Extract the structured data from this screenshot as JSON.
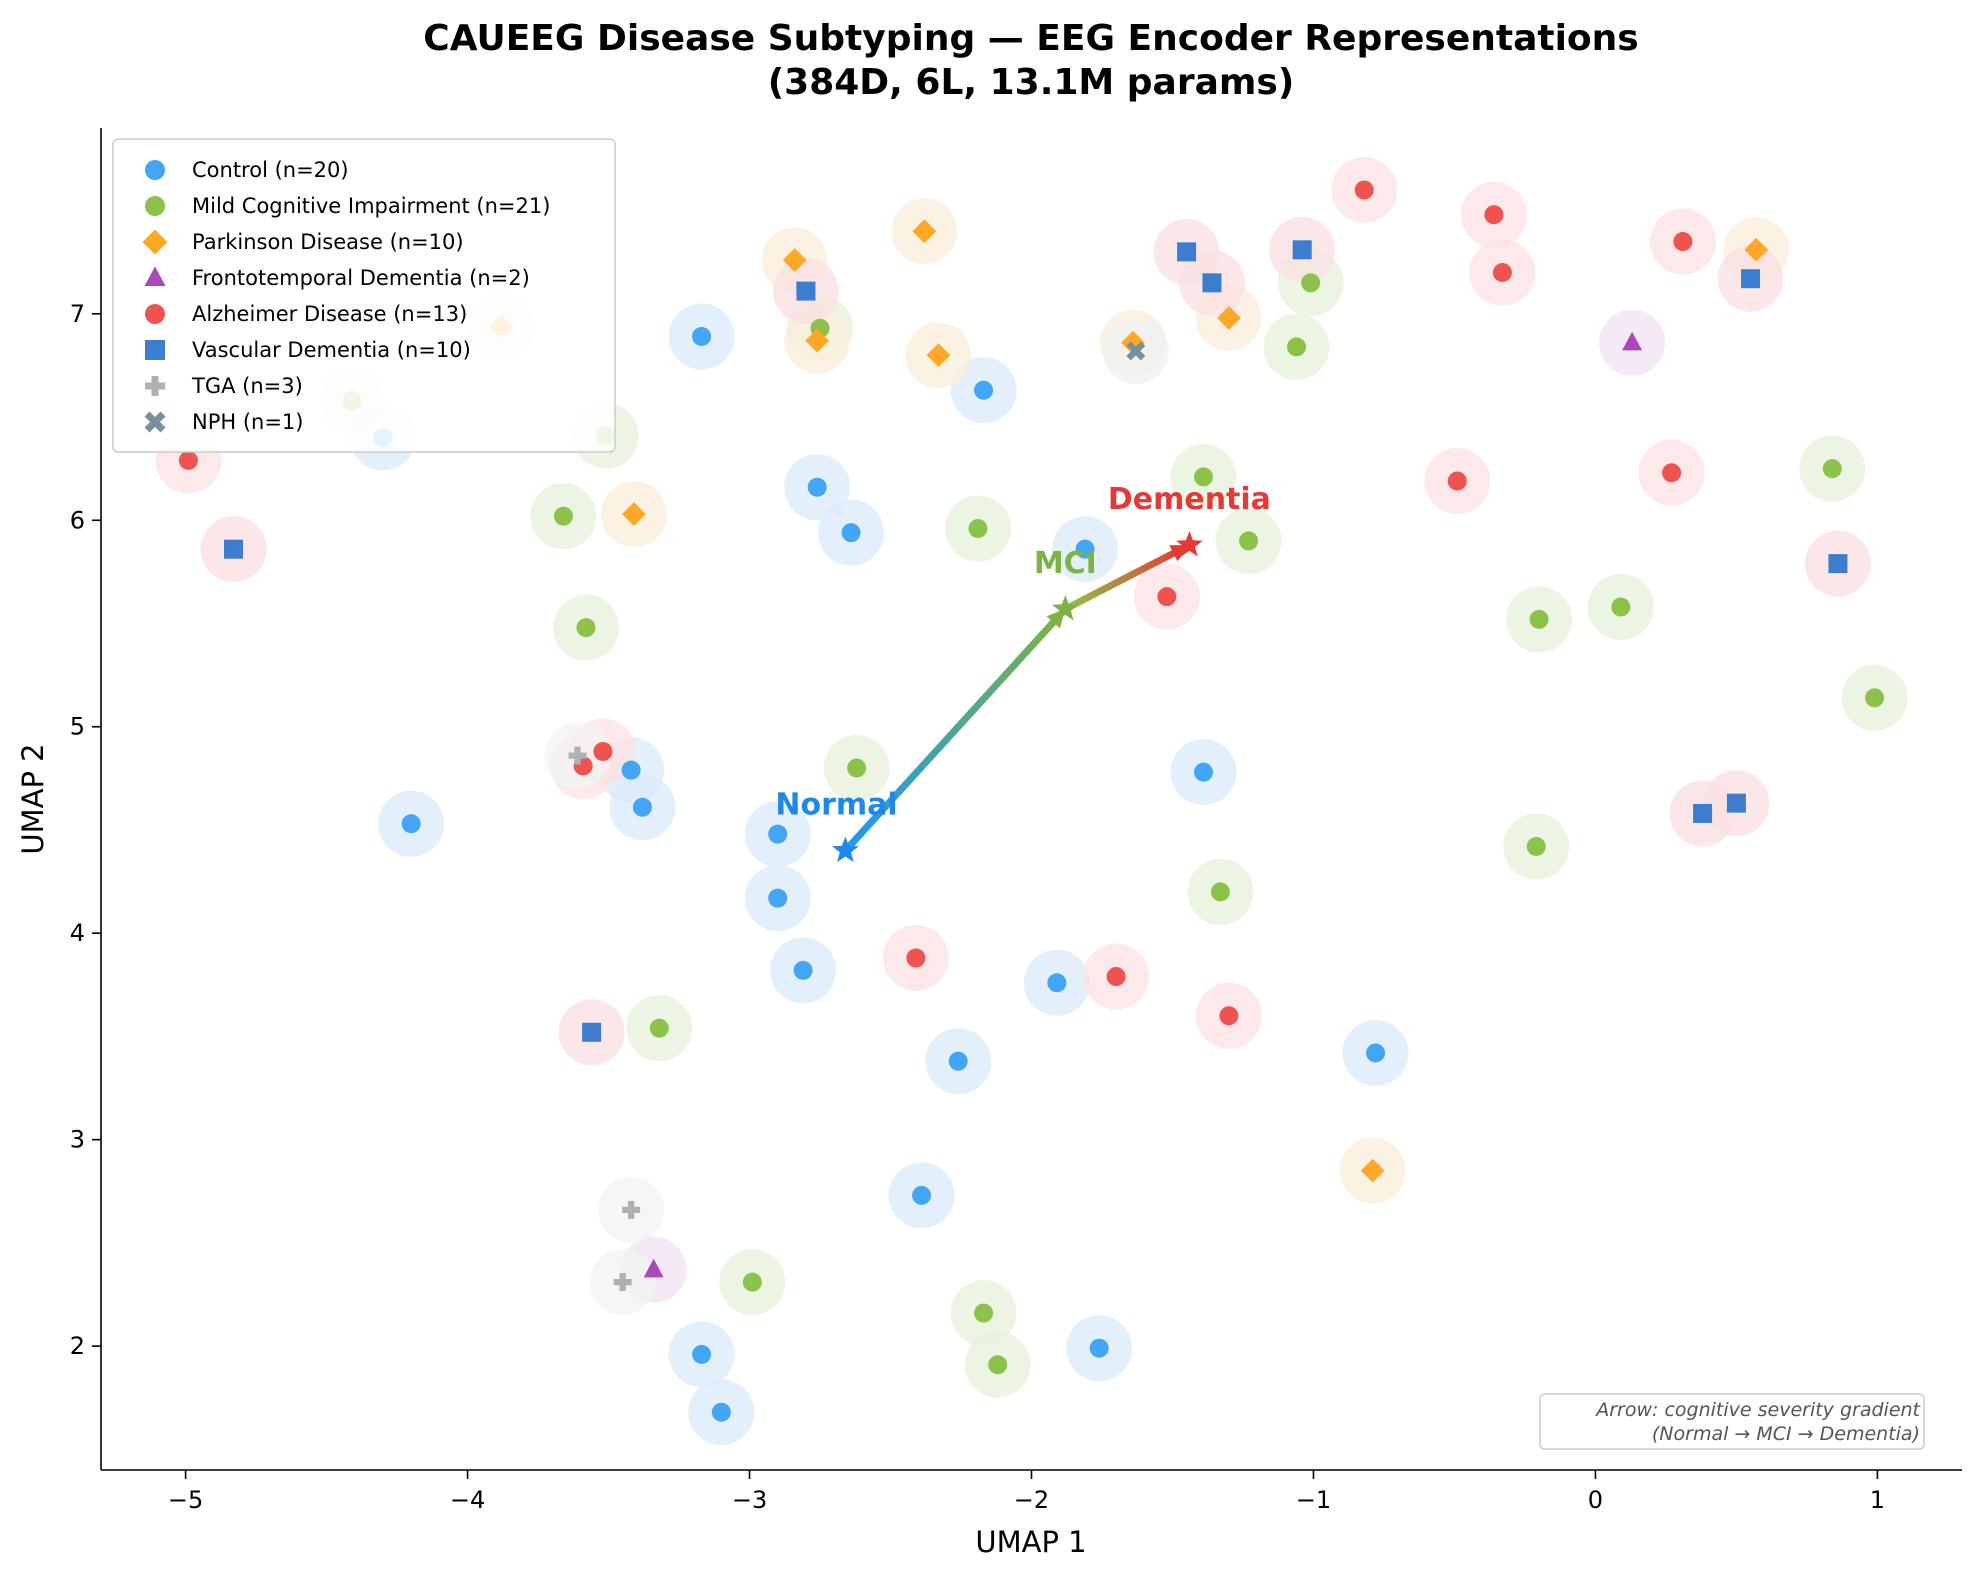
{
  "chart_data": {
    "type": "scatter",
    "title_line1": "CAUEEG Disease Subtyping — EEG Encoder Representations",
    "title_line2": "(384D, 6L, 13.1M params)",
    "xlabel": "UMAP 1",
    "ylabel": "UMAP 2",
    "xlim": [
      -5.3,
      1.3
    ],
    "ylim": [
      1.4,
      7.9
    ],
    "xticks": [
      -5,
      -4,
      -3,
      -2,
      -1,
      0,
      1
    ],
    "yticks": [
      2,
      3,
      4,
      5,
      6,
      7
    ],
    "xtick_labels": [
      "−5",
      "−4",
      "−3",
      "−2",
      "−1",
      "0",
      "1"
    ],
    "ytick_labels": [
      "2",
      "3",
      "4",
      "5",
      "6",
      "7"
    ],
    "grid": false,
    "legend_position": "top-left",
    "series": [
      {
        "name": "Control (n=20)",
        "marker": "circle",
        "color": "#42a5f5",
        "halo": "#dbeafb",
        "points": [
          [
            -4.2,
            4.53
          ],
          [
            -3.17,
            6.89
          ],
          [
            -4.3,
            6.4
          ],
          [
            -3.42,
            4.79
          ],
          [
            -3.38,
            4.61
          ],
          [
            -2.9,
            4.48
          ],
          [
            -2.9,
            4.17
          ],
          [
            -2.81,
            3.82
          ],
          [
            -2.76,
            6.16
          ],
          [
            -2.64,
            5.94
          ],
          [
            -2.17,
            6.63
          ],
          [
            -2.26,
            3.38
          ],
          [
            -2.39,
            2.73
          ],
          [
            -1.91,
            3.76
          ],
          [
            -1.81,
            5.86
          ],
          [
            -1.39,
            4.78
          ],
          [
            -0.78,
            3.42
          ],
          [
            -1.76,
            1.99
          ],
          [
            -3.17,
            1.96
          ],
          [
            -3.1,
            1.68
          ]
        ]
      },
      {
        "name": "Mild Cognitive Impairment (n=21)",
        "marker": "circle",
        "color": "#8bc34a",
        "halo": "#e6f2da",
        "points": [
          [
            -4.41,
            6.58
          ],
          [
            -3.51,
            6.41
          ],
          [
            -3.66,
            6.02
          ],
          [
            -3.58,
            5.48
          ],
          [
            -2.75,
            6.93
          ],
          [
            -2.62,
            4.8
          ],
          [
            -2.19,
            5.96
          ],
          [
            -1.39,
            6.21
          ],
          [
            -1.23,
            5.9
          ],
          [
            -1.06,
            6.84
          ],
          [
            -1.01,
            7.15
          ],
          [
            -0.2,
            5.52
          ],
          [
            0.09,
            5.58
          ],
          [
            0.84,
            6.25
          ],
          [
            0.99,
            5.14
          ],
          [
            -0.21,
            4.42
          ],
          [
            -1.33,
            4.2
          ],
          [
            -3.32,
            3.54
          ],
          [
            -2.99,
            2.31
          ],
          [
            -2.17,
            2.16
          ],
          [
            -2.12,
            1.91
          ]
        ]
      },
      {
        "name": "Parkinson Disease (n=10)",
        "marker": "diamond",
        "color": "#ffa726",
        "halo": "#fbeedb",
        "points": [
          [
            -3.88,
            6.94
          ],
          [
            -3.41,
            6.03
          ],
          [
            -2.84,
            7.26
          ],
          [
            -2.76,
            6.87
          ],
          [
            -2.38,
            7.4
          ],
          [
            -2.33,
            6.8
          ],
          [
            -1.64,
            6.86
          ],
          [
            -1.3,
            6.98
          ],
          [
            0.57,
            7.31
          ],
          [
            -0.79,
            2.85
          ]
        ]
      },
      {
        "name": "Frontotemporal Dementia (n=2)",
        "marker": "triangle",
        "color": "#ab47bc",
        "halo": "#f1e2f3",
        "points": [
          [
            0.13,
            6.86
          ],
          [
            -3.34,
            2.37
          ]
        ]
      },
      {
        "name": "Alzheimer Disease (n=13)",
        "marker": "circle",
        "color": "#ef5350",
        "halo": "#fce1e1",
        "points": [
          [
            -4.99,
            6.29
          ],
          [
            -3.59,
            4.81
          ],
          [
            -3.52,
            4.88
          ],
          [
            -2.41,
            3.88
          ],
          [
            -1.7,
            3.79
          ],
          [
            -1.52,
            5.63
          ],
          [
            -1.3,
            3.6
          ],
          [
            -0.82,
            7.6
          ],
          [
            -0.49,
            6.19
          ],
          [
            -0.36,
            7.48
          ],
          [
            -0.33,
            7.2
          ],
          [
            0.31,
            7.35
          ],
          [
            0.27,
            6.23
          ]
        ]
      },
      {
        "name": "Vascular Dementia (n=10)",
        "marker": "square",
        "color": "#3c7dd0",
        "halo": "#fadfe0",
        "points": [
          [
            -4.83,
            5.86
          ],
          [
            -2.8,
            7.11
          ],
          [
            -1.45,
            7.3
          ],
          [
            -1.36,
            7.15
          ],
          [
            -1.04,
            7.31
          ],
          [
            0.55,
            7.17
          ],
          [
            0.86,
            5.79
          ],
          [
            0.38,
            4.58
          ],
          [
            0.5,
            4.63
          ],
          [
            -3.56,
            3.52
          ]
        ]
      },
      {
        "name": "TGA (n=3)",
        "marker": "plus",
        "color": "#b0b0b0",
        "halo": "#f3f3f3",
        "points": [
          [
            -3.61,
            4.86
          ],
          [
            -3.42,
            2.66
          ],
          [
            -3.45,
            2.31
          ]
        ]
      },
      {
        "name": "NPH (n=1)",
        "marker": "x",
        "color": "#78909c",
        "halo": "#eef1f2",
        "points": [
          [
            -1.63,
            6.82
          ]
        ]
      }
    ],
    "arrow": {
      "points": [
        [
          -2.66,
          4.4
        ],
        [
          -1.88,
          5.57
        ],
        [
          -1.44,
          5.88
        ]
      ],
      "labels": [
        "Normal",
        "MCI",
        "Dementia"
      ],
      "colors": [
        "#1e88e5",
        "#7cb342",
        "#e53935"
      ]
    },
    "note_line1": "Arrow: cognitive severity gradient",
    "note_line2": "(Normal → MCI → Dementia)"
  }
}
